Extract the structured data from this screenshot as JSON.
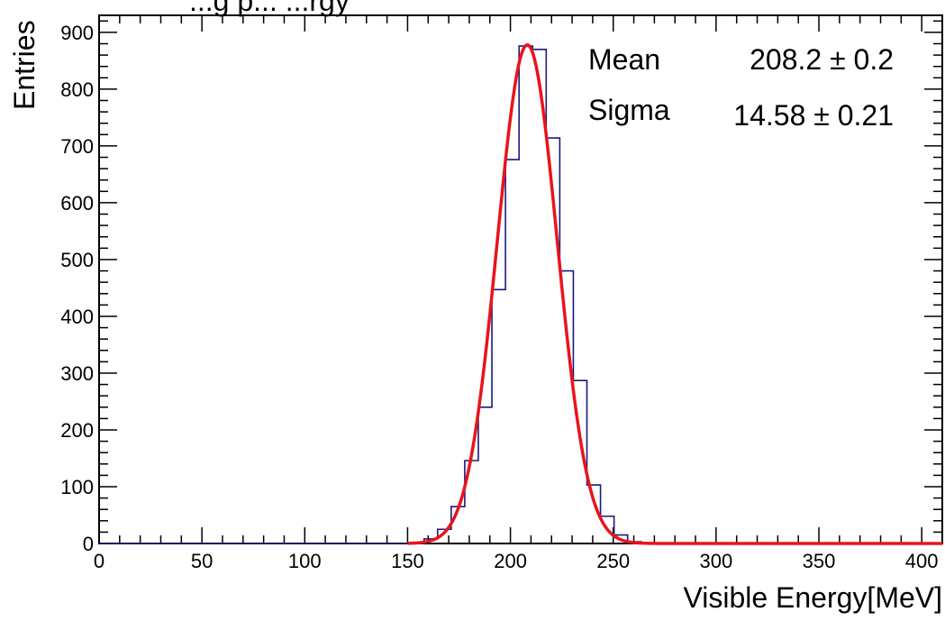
{
  "chart_data": {
    "type": "histogram",
    "title_fragment": "...g p... ...rgy",
    "xlabel": "Visible Energy[MeV]",
    "ylabel": "Entries",
    "xlim": [
      0,
      410
    ],
    "ylim": [
      0,
      930
    ],
    "x_ticks": [
      0,
      50,
      100,
      150,
      200,
      250,
      300,
      350,
      400
    ],
    "y_ticks": [
      0,
      100,
      200,
      300,
      400,
      500,
      600,
      700,
      800,
      900
    ],
    "bin_width": 6.6,
    "bins": [
      {
        "lo": 0.0,
        "hi": 158.0,
        "count": 0
      },
      {
        "lo": 158.0,
        "hi": 164.6,
        "count": 8
      },
      {
        "lo": 164.6,
        "hi": 171.2,
        "count": 25
      },
      {
        "lo": 171.2,
        "hi": 177.8,
        "count": 65
      },
      {
        "lo": 177.8,
        "hi": 184.4,
        "count": 146
      },
      {
        "lo": 184.4,
        "hi": 191.0,
        "count": 240
      },
      {
        "lo": 191.0,
        "hi": 197.6,
        "count": 447
      },
      {
        "lo": 197.6,
        "hi": 204.2,
        "count": 676
      },
      {
        "lo": 204.2,
        "hi": 210.8,
        "count": 876
      },
      {
        "lo": 210.8,
        "hi": 217.4,
        "count": 870
      },
      {
        "lo": 217.4,
        "hi": 224.0,
        "count": 714
      },
      {
        "lo": 224.0,
        "hi": 230.6,
        "count": 480
      },
      {
        "lo": 230.6,
        "hi": 237.2,
        "count": 287
      },
      {
        "lo": 237.2,
        "hi": 243.8,
        "count": 103
      },
      {
        "lo": 243.8,
        "hi": 250.4,
        "count": 48
      },
      {
        "lo": 250.4,
        "hi": 257.0,
        "count": 15
      },
      {
        "lo": 257.0,
        "hi": 263.6,
        "count": 3
      },
      {
        "lo": 263.6,
        "hi": 410.0,
        "count": 0
      }
    ],
    "fit": {
      "type": "gaussian",
      "color": "#e8141c",
      "amplitude": 878,
      "mean": 208.2,
      "sigma": 14.58,
      "range": [
        150,
        410
      ]
    },
    "histogram_color": "#1b1a7a",
    "stats": [
      {
        "label": "Mean",
        "value": "208.2 ± 0.2"
      },
      {
        "label": "Sigma",
        "value": "14.58 ± 0.21"
      }
    ],
    "grid": false,
    "legend": "none"
  }
}
